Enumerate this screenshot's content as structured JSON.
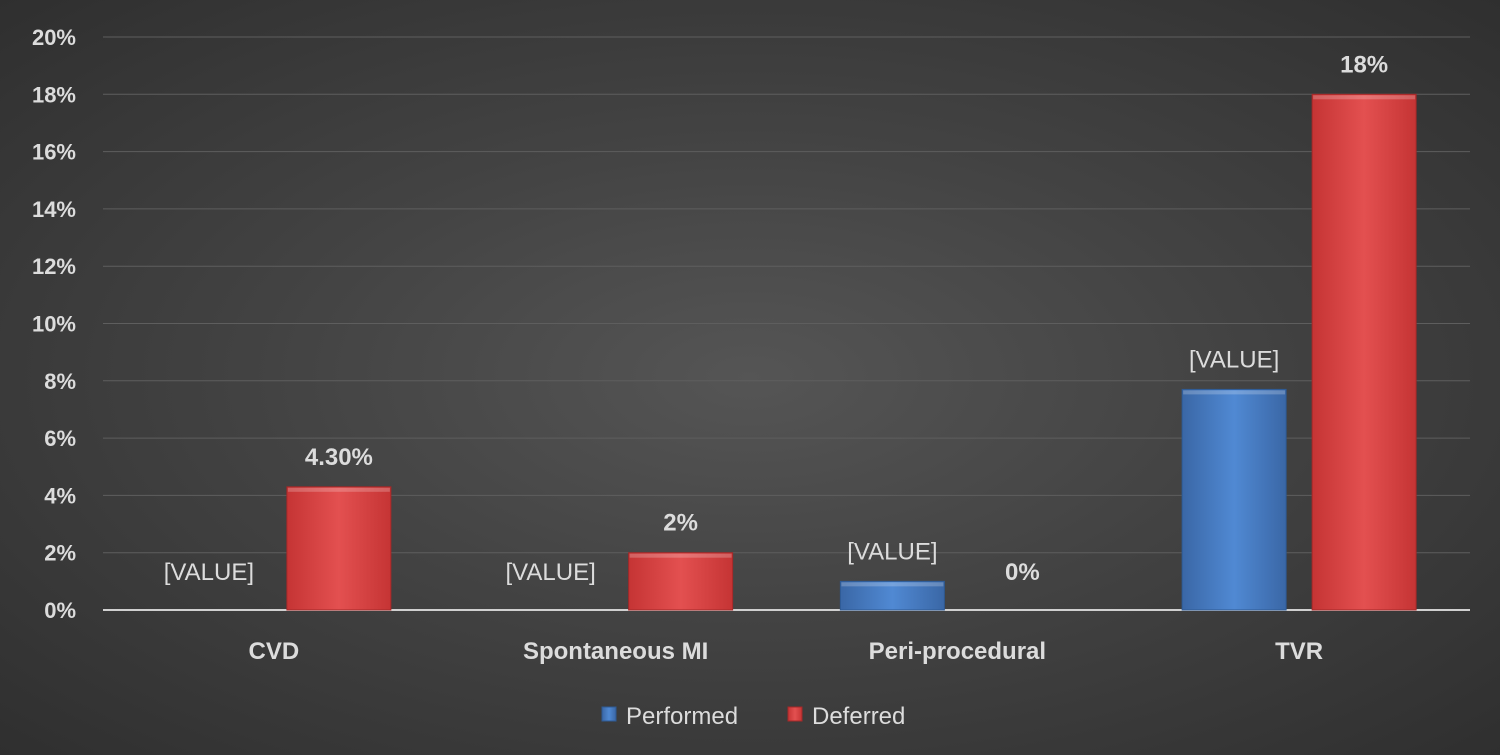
{
  "chart_data": {
    "type": "bar",
    "categories": [
      "CVD",
      "Spontaneous MI",
      "Peri-procedural",
      "TVR"
    ],
    "series": [
      {
        "name": "Performed",
        "values": [
          0,
          0,
          1,
          7.7
        ],
        "labels": [
          "[VALUE]",
          "[VALUE]",
          "[VALUE]",
          "[VALUE]"
        ],
        "color": "#4a7fc4"
      },
      {
        "name": "Deferred",
        "values": [
          4.3,
          2,
          0,
          18
        ],
        "labels": [
          "4.30%",
          "2%",
          "0%",
          "18%"
        ],
        "color": "#d94444"
      }
    ],
    "y_ticks": [
      "0%",
      "2%",
      "4%",
      "6%",
      "8%",
      "10%",
      "12%",
      "14%",
      "16%",
      "18%",
      "20%"
    ],
    "ylim": [
      0,
      20
    ],
    "grid": true,
    "legend_position": "bottom"
  }
}
